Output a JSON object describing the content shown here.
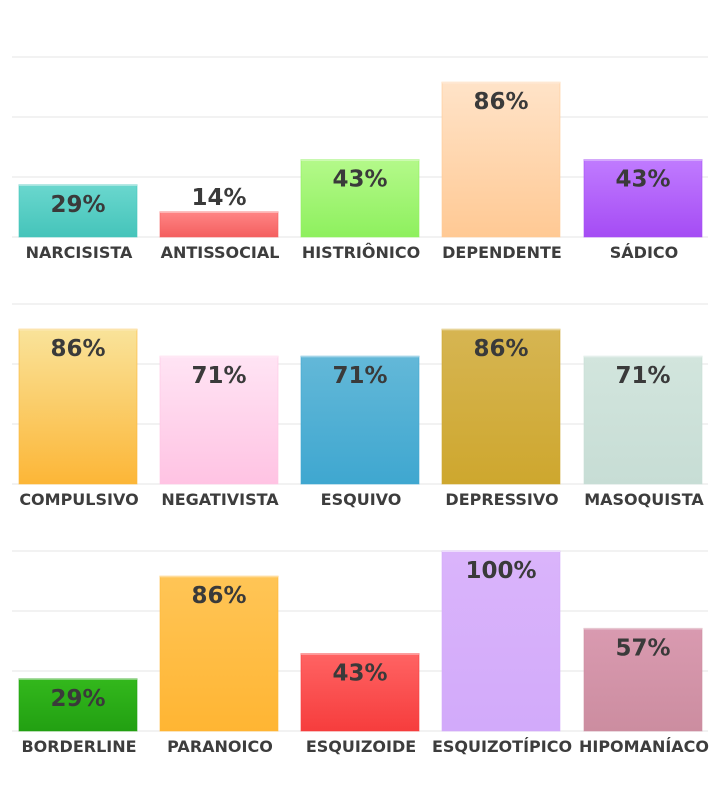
{
  "chart_data": [
    {
      "type": "bar",
      "categories": [
        "NARCISISTA",
        "ANTISSOCIAL",
        "HISTRIÔNICO",
        "DEPENDENTE",
        "SÁDICO"
      ],
      "values": [
        29,
        14,
        43,
        86,
        43
      ],
      "value_labels": [
        "29%",
        "14%",
        "43%",
        "86%",
        "43%"
      ],
      "colors": [
        [
          "#6ad7ce",
          "#45c4ba"
        ],
        [
          "#ff8585",
          "#f45f5f"
        ],
        [
          "#b4f98a",
          "#8ef05e"
        ],
        [
          "#ffe3c8",
          "#ffc994"
        ],
        [
          "#c07bff",
          "#a54cf4"
        ]
      ],
      "ylim": [
        0,
        100
      ],
      "grid": true
    },
    {
      "type": "bar",
      "categories": [
        "COMPULSIVO",
        "NEGATIVISTA",
        "ESQUIVO",
        "DEPRESSIVO",
        "MASOQUISTA"
      ],
      "values": [
        86,
        71,
        71,
        86,
        71
      ],
      "value_labels": [
        "86%",
        "71%",
        "71%",
        "86%",
        "71%"
      ],
      "colors": [
        [
          "#f9e39a",
          "#fcb637"
        ],
        [
          "#ffe4f4",
          "#ffc3e3"
        ],
        [
          "#63b8d8",
          "#3fa7d0"
        ],
        [
          "#d6b552",
          "#cea72e"
        ],
        [
          "#d2e5dd",
          "#c7ddd5"
        ]
      ],
      "ylim": [
        0,
        100
      ],
      "grid": true
    },
    {
      "type": "bar",
      "categories": [
        "BORDERLINE",
        "PARANOICO",
        "ESQUIZOIDE",
        "ESQUIZOTÍPICO",
        "HIPOMANÍACO"
      ],
      "values": [
        29,
        86,
        43,
        100,
        57
      ],
      "value_labels": [
        "29%",
        "86%",
        "43%",
        "100%",
        "57%"
      ],
      "colors": [
        [
          "#33b81c",
          "#22a012"
        ],
        [
          "#ffc556",
          "#ffb533"
        ],
        [
          "#ff6363",
          "#f63d3d"
        ],
        [
          "#dab4fb",
          "#d2aafa"
        ],
        [
          "#d99ab0",
          "#cc8da0"
        ]
      ],
      "ylim": [
        0,
        100
      ],
      "grid": true
    }
  ]
}
